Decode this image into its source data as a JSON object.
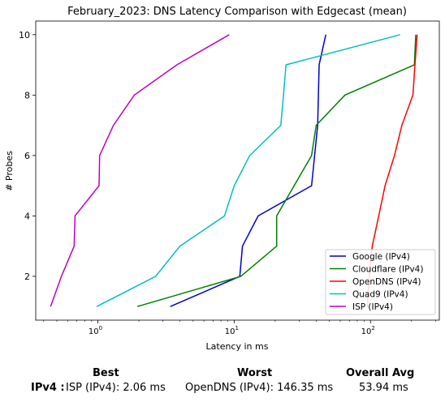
{
  "chart_data": {
    "type": "line",
    "title": "February_2023: DNS Latency Comparison with Edgecast (mean)",
    "xlabel": "Latency in ms",
    "ylabel": "# Probes",
    "xscale": "log",
    "xlim": [
      0.35,
      320
    ],
    "ylim": [
      0.55,
      10.45
    ],
    "xticks": [
      {
        "value": 1,
        "label": "10^0",
        "base": "10",
        "exp": "0"
      },
      {
        "value": 10,
        "label": "10^1",
        "base": "10",
        "exp": "1"
      },
      {
        "value": 100,
        "label": "10^2",
        "base": "10",
        "exp": "2"
      }
    ],
    "yticks": [
      2,
      4,
      6,
      8,
      10
    ],
    "grid": false,
    "legend_position": "lower right",
    "series": [
      {
        "name": "Google (IPv4)",
        "color": "#0000cc",
        "x": [
          3.4,
          11.0,
          11.5,
          15.0,
          37.0,
          41.0,
          42.0,
          47.0
        ],
        "y": [
          1,
          2,
          3,
          4,
          5,
          7,
          9,
          10
        ]
      },
      {
        "name": "Cloudflare (IPv4)",
        "color": "#008000",
        "x": [
          1.95,
          11.2,
          20.5,
          20.5,
          37.0,
          40.0,
          65.0,
          210.0,
          215.0
        ],
        "y": [
          1,
          2,
          3,
          4,
          6,
          7,
          8,
          9,
          10
        ]
      },
      {
        "name": "OpenDNS (IPv4)",
        "color": "#ff0000",
        "x": [
          95.0,
          98.0,
          103.0,
          115.0,
          128.0,
          150.0,
          170.0,
          205.0,
          212.0,
          220.0
        ],
        "y": [
          1,
          2,
          3,
          4,
          5,
          6,
          7,
          8,
          9,
          10
        ]
      },
      {
        "name": "Quad9 (IPv4)",
        "color": "#00bfbf",
        "x": [
          0.98,
          2.65,
          4.0,
          8.5,
          10.0,
          13.0,
          22.0,
          23.0,
          24.0,
          165.0
        ],
        "y": [
          1,
          2,
          3,
          4,
          5,
          6,
          7,
          8,
          9,
          10
        ]
      },
      {
        "name": "ISP (IPv4)",
        "color": "#bf00bf",
        "x": [
          0.45,
          0.54,
          0.67,
          0.68,
          1.02,
          1.03,
          1.3,
          1.85,
          3.8,
          9.2
        ],
        "y": [
          1,
          2,
          3,
          4,
          5,
          6,
          7,
          8,
          9,
          10
        ]
      }
    ]
  },
  "summary": {
    "best_header": "Best",
    "worst_header": "Worst",
    "avg_header": "Overall Avg",
    "row_label": "IPv4 :",
    "best_value": "ISP (IPv4): 2.06 ms",
    "worst_value": "OpenDNS (IPv4): 146.35 ms",
    "avg_value": "53.94 ms"
  }
}
